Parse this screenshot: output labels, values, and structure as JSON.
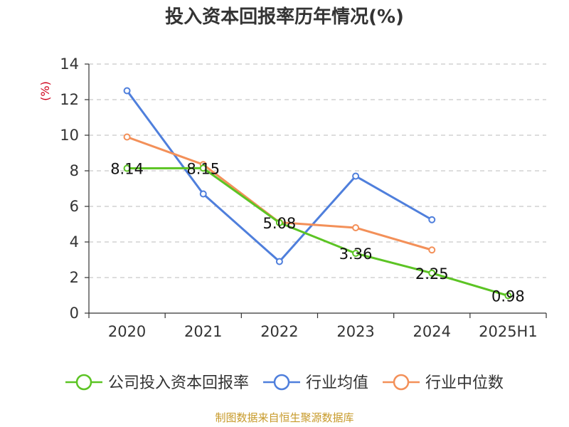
{
  "title": "投入资本回报率历年情况(%)",
  "source": "制图数据来自恒生聚源数据库",
  "colors": {
    "company": "#5cc424",
    "avg": "#4f7fdc",
    "median": "#f39059",
    "unit": "#d0021b",
    "grid": "#bbbbbb",
    "source": "#c79a2a"
  },
  "chart_data": {
    "type": "line",
    "title": "投入资本回报率历年情况(%)",
    "ylabel": "(%)",
    "xlabel": "",
    "categories": [
      "2020",
      "2021",
      "2022",
      "2023",
      "2024",
      "2025H1"
    ],
    "ylim": [
      0,
      14
    ],
    "yticks": [
      0,
      2,
      4,
      6,
      8,
      10,
      12,
      14
    ],
    "grid": true,
    "legend_position": "bottom",
    "series": [
      {
        "name": "公司投入资本回报率",
        "color": "#5cc424",
        "values": [
          8.14,
          8.15,
          5.08,
          3.36,
          2.25,
          0.98
        ],
        "labels": [
          "8.14",
          "8.15",
          "5.08",
          "3.36",
          "2.25",
          "0.98"
        ]
      },
      {
        "name": "行业均值",
        "color": "#4f7fdc",
        "values": [
          12.5,
          6.7,
          2.9,
          7.7,
          5.25,
          null
        ]
      },
      {
        "name": "行业中位数",
        "color": "#f39059",
        "values": [
          9.9,
          8.35,
          5.1,
          4.8,
          3.55,
          null
        ]
      }
    ]
  }
}
